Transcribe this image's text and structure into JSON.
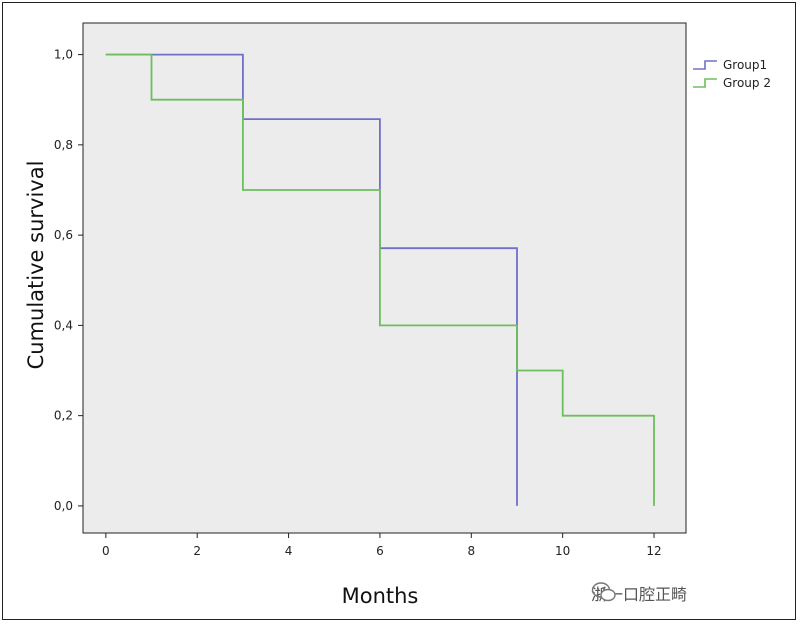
{
  "chart_data": {
    "type": "line",
    "step": true,
    "xlabel": "Months",
    "ylabel": "Cumulative survival",
    "xlim": [
      -0.5,
      12.7
    ],
    "ylim": [
      -0.06,
      1.07
    ],
    "x_ticks": [
      {
        "value": 0,
        "label": "0"
      },
      {
        "value": 2,
        "label": "2"
      },
      {
        "value": 4,
        "label": "4"
      },
      {
        "value": 6,
        "label": "6"
      },
      {
        "value": 8,
        "label": "8"
      },
      {
        "value": 10,
        "label": "10"
      },
      {
        "value": 12,
        "label": "12"
      }
    ],
    "y_ticks": [
      {
        "value": 0.0,
        "label": "0,0"
      },
      {
        "value": 0.2,
        "label": "0,2"
      },
      {
        "value": 0.4,
        "label": "0,4"
      },
      {
        "value": 0.6,
        "label": "0,6"
      },
      {
        "value": 0.8,
        "label": "0,8"
      },
      {
        "value": 1.0,
        "label": "1,0"
      }
    ],
    "grid": false,
    "legend_position": "top-right",
    "series": [
      {
        "name": "Group1",
        "color": "#7070c8",
        "points": [
          [
            0,
            1.0
          ],
          [
            3,
            1.0
          ],
          [
            3,
            0.857
          ],
          [
            6,
            0.857
          ],
          [
            6,
            0.571
          ],
          [
            9,
            0.571
          ],
          [
            9,
            0.0
          ]
        ]
      },
      {
        "name": "Group 2",
        "color": "#6cbf5c",
        "points": [
          [
            0,
            1.0
          ],
          [
            1,
            1.0
          ],
          [
            1,
            0.9
          ],
          [
            3,
            0.9
          ],
          [
            3,
            0.7
          ],
          [
            6,
            0.7
          ],
          [
            6,
            0.4
          ],
          [
            9,
            0.4
          ],
          [
            9,
            0.3
          ],
          [
            10,
            0.3
          ],
          [
            10,
            0.2
          ],
          [
            12,
            0.2
          ],
          [
            12,
            0.0
          ]
        ]
      }
    ]
  },
  "watermark": {
    "text": "浙一口腔正畸",
    "icon": "wechat-icon"
  }
}
